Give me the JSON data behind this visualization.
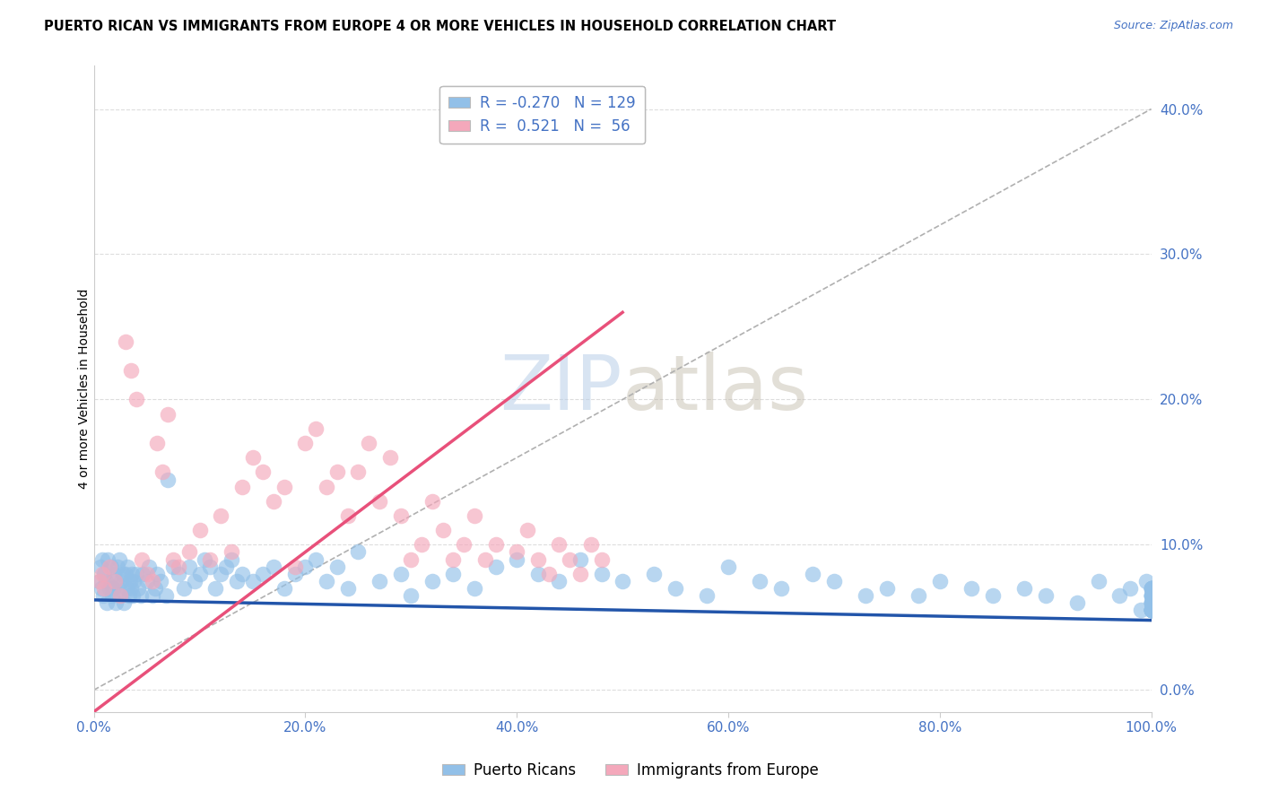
{
  "title": "PUERTO RICAN VS IMMIGRANTS FROM EUROPE 4 OR MORE VEHICLES IN HOUSEHOLD CORRELATION CHART",
  "source": "Source: ZipAtlas.com",
  "ylabel": "4 or more Vehicles in Household",
  "xlabel_ticks": [
    "0.0%",
    "20.0%",
    "40.0%",
    "60.0%",
    "80.0%",
    "100.0%"
  ],
  "ylabel_ticks": [
    "0.0%",
    "10.0%",
    "20.0%",
    "30.0%",
    "40.0%"
  ],
  "xlim": [
    0,
    100
  ],
  "ylim": [
    -1.5,
    43
  ],
  "blue_R": -0.27,
  "blue_N": 129,
  "pink_R": 0.521,
  "pink_N": 56,
  "blue_color": "#92C0E8",
  "pink_color": "#F4A8BB",
  "blue_line_color": "#2255AA",
  "pink_line_color": "#E8507A",
  "watermark_zip": "ZIP",
  "watermark_atlas": "atlas",
  "background_color": "#FFFFFF",
  "grid_color": "#DDDDDD",
  "legend_label_blue": "Puerto Ricans",
  "legend_label_pink": "Immigrants from Europe",
  "blue_line_x": [
    0,
    100
  ],
  "blue_line_y": [
    6.2,
    4.8
  ],
  "pink_line_x": [
    0,
    50
  ],
  "pink_line_y": [
    -1.5,
    26.0
  ],
  "diag_line_x": [
    0,
    100
  ],
  "diag_line_y": [
    0,
    40
  ],
  "blue_x": [
    0.5,
    0.6,
    0.7,
    0.8,
    0.9,
    1.0,
    1.1,
    1.2,
    1.3,
    1.5,
    1.6,
    1.7,
    1.8,
    1.9,
    2.0,
    2.1,
    2.2,
    2.3,
    2.4,
    2.5,
    2.6,
    2.7,
    2.8,
    3.0,
    3.1,
    3.2,
    3.3,
    3.4,
    3.5,
    3.6,
    3.7,
    3.8,
    4.0,
    4.2,
    4.4,
    4.6,
    5.0,
    5.2,
    5.5,
    5.8,
    6.0,
    6.3,
    6.8,
    7.0,
    7.5,
    8.0,
    8.5,
    9.0,
    9.5,
    10.0,
    10.5,
    11.0,
    11.5,
    12.0,
    12.5,
    13.0,
    13.5,
    14.0,
    15.0,
    16.0,
    17.0,
    18.0,
    19.0,
    20.0,
    21.0,
    22.0,
    23.0,
    24.0,
    25.0,
    27.0,
    29.0,
    30.0,
    32.0,
    34.0,
    36.0,
    38.0,
    40.0,
    42.0,
    44.0,
    46.0,
    48.0,
    50.0,
    53.0,
    55.0,
    58.0,
    60.0,
    63.0,
    65.0,
    68.0,
    70.0,
    73.0,
    75.0,
    78.0,
    80.0,
    83.0,
    85.0,
    88.0,
    90.0,
    93.0,
    95.0,
    97.0,
    98.0,
    99.0,
    99.5,
    100.0,
    100.0,
    100.0,
    100.0,
    100.0,
    100.0,
    100.0,
    100.0,
    100.0,
    100.0,
    100.0,
    100.0,
    100.0,
    100.0,
    100.0,
    100.0,
    100.0,
    100.0,
    100.0,
    100.0,
    100.0,
    100.0,
    100.0,
    100.0,
    100.0
  ],
  "blue_y": [
    7.5,
    8.5,
    7.0,
    9.0,
    6.5,
    8.0,
    7.5,
    6.0,
    9.0,
    7.0,
    8.5,
    6.5,
    7.0,
    8.0,
    7.5,
    6.0,
    8.5,
    7.0,
    9.0,
    6.5,
    7.5,
    8.0,
    6.0,
    8.0,
    7.0,
    8.5,
    6.5,
    7.5,
    7.0,
    8.0,
    6.5,
    7.5,
    8.0,
    7.0,
    6.5,
    8.0,
    7.5,
    8.5,
    6.5,
    7.0,
    8.0,
    7.5,
    6.5,
    14.5,
    8.5,
    8.0,
    7.0,
    8.5,
    7.5,
    8.0,
    9.0,
    8.5,
    7.0,
    8.0,
    8.5,
    9.0,
    7.5,
    8.0,
    7.5,
    8.0,
    8.5,
    7.0,
    8.0,
    8.5,
    9.0,
    7.5,
    8.5,
    7.0,
    9.5,
    7.5,
    8.0,
    6.5,
    7.5,
    8.0,
    7.0,
    8.5,
    9.0,
    8.0,
    7.5,
    9.0,
    8.0,
    7.5,
    8.0,
    7.0,
    6.5,
    8.5,
    7.5,
    7.0,
    8.0,
    7.5,
    6.5,
    7.0,
    6.5,
    7.5,
    7.0,
    6.5,
    7.0,
    6.5,
    6.0,
    7.5,
    6.5,
    7.0,
    5.5,
    7.5,
    5.5,
    6.0,
    6.5,
    7.0,
    5.5,
    6.5,
    7.0,
    5.5,
    6.0,
    7.0,
    6.5,
    5.5,
    6.0,
    5.5,
    7.0,
    6.5,
    5.5,
    6.0,
    5.5,
    6.0,
    7.0,
    5.5,
    6.5,
    7.0,
    5.5
  ],
  "pink_x": [
    0.5,
    0.8,
    1.0,
    1.5,
    2.0,
    2.5,
    3.0,
    3.5,
    4.0,
    4.5,
    5.0,
    5.5,
    6.0,
    6.5,
    7.0,
    7.5,
    8.0,
    9.0,
    10.0,
    11.0,
    12.0,
    13.0,
    14.0,
    15.0,
    16.0,
    17.0,
    18.0,
    19.0,
    20.0,
    21.0,
    22.0,
    23.0,
    24.0,
    25.0,
    26.0,
    27.0,
    28.0,
    29.0,
    30.0,
    31.0,
    32.0,
    33.0,
    34.0,
    35.0,
    36.0,
    37.0,
    38.0,
    40.0,
    41.0,
    42.0,
    43.0,
    44.0,
    45.0,
    46.0,
    47.0,
    48.0
  ],
  "pink_y": [
    7.5,
    8.0,
    7.0,
    8.5,
    7.5,
    6.5,
    24.0,
    22.0,
    20.0,
    9.0,
    8.0,
    7.5,
    17.0,
    15.0,
    19.0,
    9.0,
    8.5,
    9.5,
    11.0,
    9.0,
    12.0,
    9.5,
    14.0,
    16.0,
    15.0,
    13.0,
    14.0,
    8.5,
    17.0,
    18.0,
    14.0,
    15.0,
    12.0,
    15.0,
    17.0,
    13.0,
    16.0,
    12.0,
    9.0,
    10.0,
    13.0,
    11.0,
    9.0,
    10.0,
    12.0,
    9.0,
    10.0,
    9.5,
    11.0,
    9.0,
    8.0,
    10.0,
    9.0,
    8.0,
    10.0,
    9.0
  ]
}
